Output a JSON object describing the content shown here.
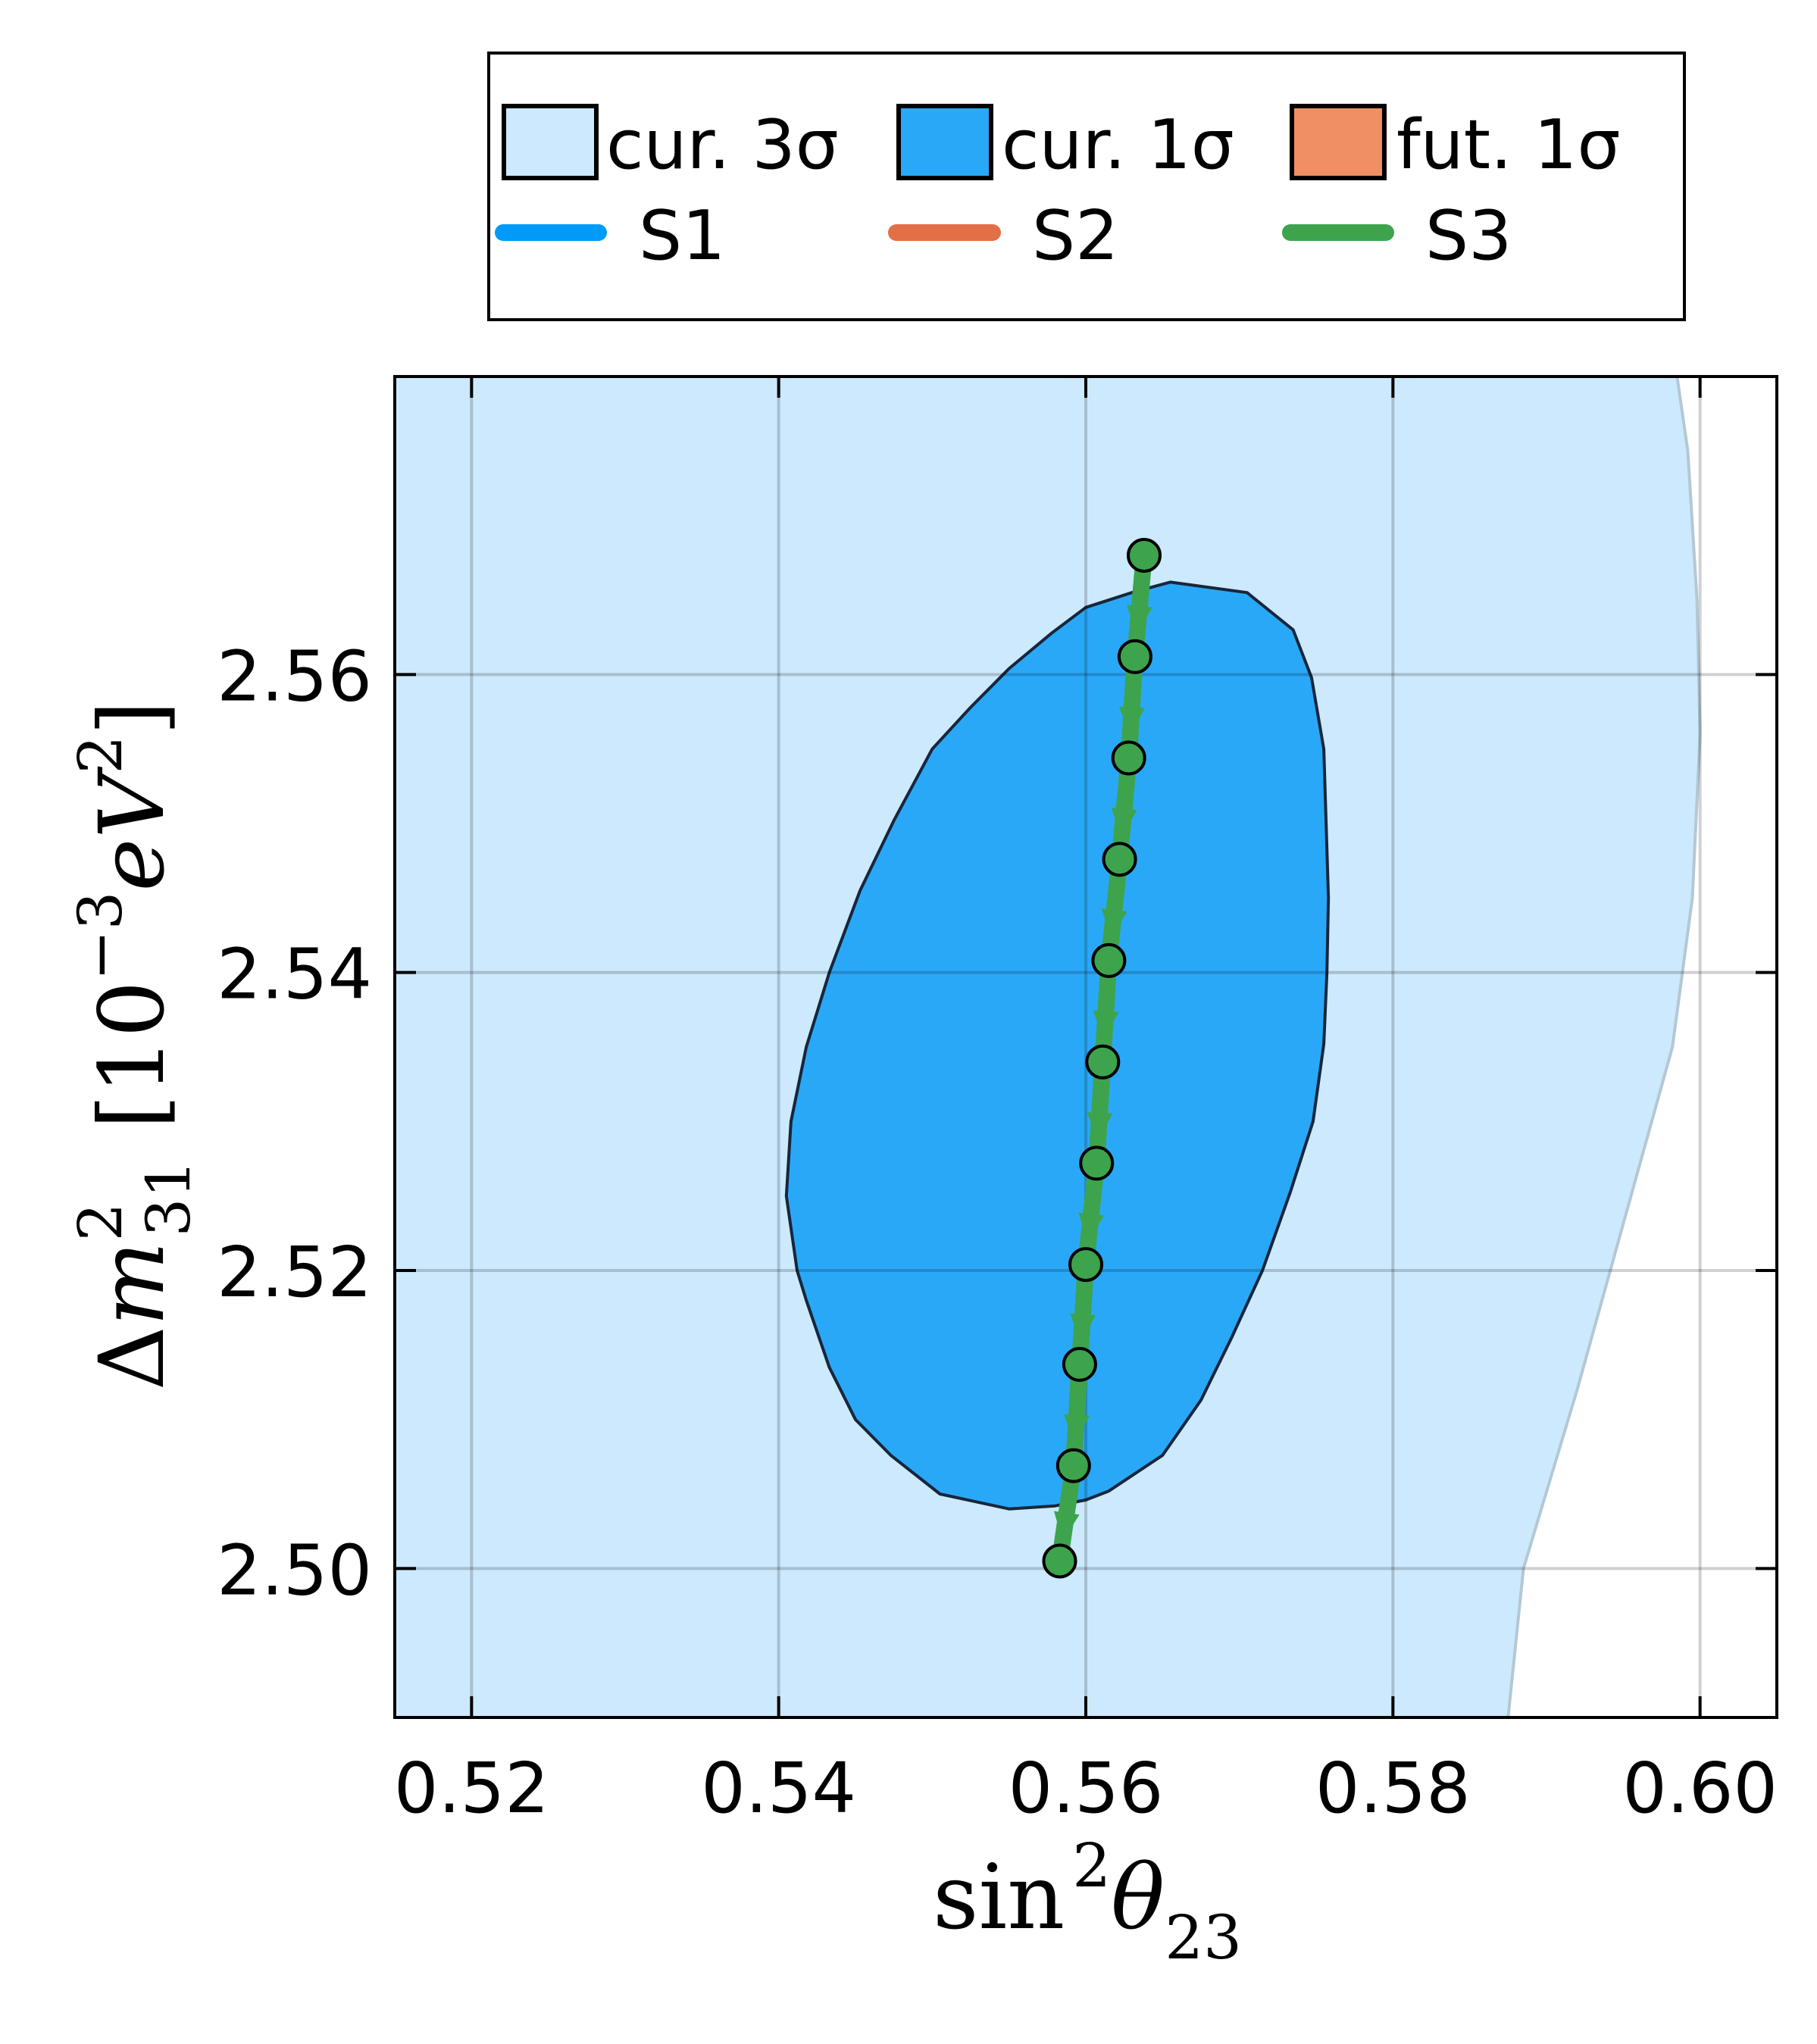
{
  "chart_data": {
    "type": "line",
    "xlabel": {
      "base": "sin",
      "sup": "2",
      "var": "θ",
      "sub": "23"
    },
    "ylabel": {
      "prefix": "Δ",
      "var": "m",
      "sup": "2",
      "sub": "31",
      "bracket_open": "[",
      "unit_base": "10",
      "unit_exp": "−3",
      "unit": "eV",
      "unit_exp2": "2",
      "bracket_close": "]"
    },
    "xlim": [
      0.515,
      0.605
    ],
    "ylim": [
      2.49,
      2.58
    ],
    "xticks": [
      0.52,
      0.54,
      0.56,
      0.58,
      0.6
    ],
    "xtick_labels": [
      "0.52",
      "0.54",
      "0.56",
      "0.58",
      "0.60"
    ],
    "yticks": [
      2.5,
      2.52,
      2.54,
      2.56
    ],
    "ytick_labels": [
      "2.50",
      "2.52",
      "2.54",
      "2.56"
    ],
    "grid": true,
    "legend": {
      "placement": "above",
      "row1": [
        {
          "label": "cur. 3σ",
          "color": "#cce9fd",
          "kind": "patch"
        },
        {
          "label": "cur. 1σ",
          "color": "#2aa8f8",
          "kind": "patch"
        },
        {
          "label": "fut. 1σ",
          "color": "#f08f64",
          "kind": "patch"
        }
      ],
      "row2": [
        {
          "label": "S1",
          "color": "#009af9",
          "kind": "line"
        },
        {
          "label": "S2",
          "color": "#e26f46",
          "kind": "line"
        },
        {
          "label": "S3",
          "color": "#3da44d",
          "kind": "line"
        }
      ]
    },
    "regions": {
      "cur_3sigma": {
        "color": "#cce9fd",
        "edge_color": "#b4c8d4",
        "boundary": [
          [
            0.5985,
            2.58
          ],
          [
            0.5992,
            2.575
          ],
          [
            0.5998,
            2.565
          ],
          [
            0.6,
            2.556
          ],
          [
            0.5995,
            2.545
          ],
          [
            0.5982,
            2.535
          ],
          [
            0.5955,
            2.525
          ],
          [
            0.592,
            2.512
          ],
          [
            0.5885,
            2.5
          ],
          [
            0.5875,
            2.49
          ]
        ]
      },
      "cur_1sigma": {
        "color": "#2aa8f8",
        "edge_color": "#17263a",
        "boundary": [
          [
            0.5655,
            2.5662
          ],
          [
            0.5705,
            2.5655
          ],
          [
            0.5735,
            2.563
          ],
          [
            0.5747,
            2.5598
          ],
          [
            0.5755,
            2.555
          ],
          [
            0.5758,
            2.545
          ],
          [
            0.5757,
            2.54
          ],
          [
            0.5755,
            2.5352
          ],
          [
            0.5748,
            2.53
          ],
          [
            0.5733,
            2.5252
          ],
          [
            0.5715,
            2.52
          ],
          [
            0.5695,
            2.5155
          ],
          [
            0.5675,
            2.5113
          ],
          [
            0.565,
            2.5076
          ],
          [
            0.5615,
            2.5052
          ],
          [
            0.56,
            2.5046
          ],
          [
            0.558,
            2.5042
          ],
          [
            0.555,
            2.504
          ],
          [
            0.5505,
            2.505
          ],
          [
            0.5473,
            2.5076
          ],
          [
            0.545,
            2.51
          ],
          [
            0.5433,
            2.5135
          ],
          [
            0.5418,
            2.518
          ],
          [
            0.5412,
            2.52
          ],
          [
            0.5405,
            2.525
          ],
          [
            0.5408,
            2.53
          ],
          [
            0.5418,
            2.535
          ],
          [
            0.5433,
            2.54
          ],
          [
            0.5453,
            2.5455
          ],
          [
            0.5475,
            2.5502
          ],
          [
            0.55,
            2.555
          ],
          [
            0.5525,
            2.5578
          ],
          [
            0.555,
            2.5604
          ],
          [
            0.5578,
            2.5628
          ],
          [
            0.56,
            2.5645
          ],
          [
            0.563,
            2.5655
          ]
        ]
      }
    },
    "series": [
      {
        "name": "S3",
        "color": "#3da44d",
        "marker_color": "#3da44d",
        "direction": "downward",
        "x": [
          0.5638,
          0.5632,
          0.5628,
          0.5622,
          0.5615,
          0.5611,
          0.5607,
          0.56,
          0.5596,
          0.5592,
          0.5583
        ],
        "y": [
          2.568,
          2.5612,
          2.5544,
          2.5476,
          2.5408,
          2.534,
          2.5272,
          2.5204,
          2.5137,
          2.5069,
          2.5005
        ]
      }
    ]
  }
}
